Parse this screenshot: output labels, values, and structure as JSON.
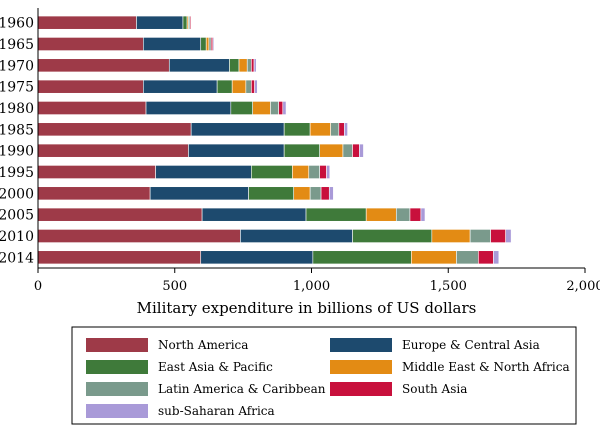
{
  "chart_data": {
    "type": "bar",
    "orientation": "horizontal",
    "stacked": true,
    "title": "",
    "xlabel": "Military expenditure in billions of US dollars",
    "ylabel": "",
    "xlim": [
      0,
      2000
    ],
    "xticks": [
      0,
      500,
      1000,
      1500,
      2000
    ],
    "xtick_labels": [
      "0",
      "500",
      "1,000",
      "1,500",
      "2,000"
    ],
    "grid": false,
    "legend_position": "bottom",
    "categories": [
      "1960",
      "1965",
      "1970",
      "1975",
      "1980",
      "1985",
      "1990",
      "1995",
      "2000",
      "2005",
      "2010",
      "2014"
    ],
    "series": [
      {
        "name": "North America",
        "color": "#9e3a48",
        "values": [
          360,
          385,
          480,
          385,
          395,
          560,
          550,
          430,
          410,
          600,
          740,
          595
        ]
      },
      {
        "name": "Europe & Central Asia",
        "color": "#1d4a6e",
        "values": [
          170,
          210,
          220,
          270,
          310,
          340,
          350,
          350,
          360,
          380,
          410,
          410
        ]
      },
      {
        "name": "East Asia & Pacific",
        "color": "#3f7a3a",
        "values": [
          15,
          20,
          35,
          55,
          80,
          95,
          130,
          150,
          165,
          220,
          290,
          360
        ]
      },
      {
        "name": "Middle East & North Africa",
        "color": "#e38b14",
        "values": [
          5,
          10,
          30,
          50,
          65,
          75,
          85,
          60,
          60,
          110,
          140,
          165
        ]
      },
      {
        "name": "Latin America & Caribbean",
        "color": "#7a9a8c",
        "values": [
          5,
          8,
          15,
          20,
          30,
          30,
          35,
          40,
          40,
          50,
          75,
          80
        ]
      },
      {
        "name": "South Asia",
        "color": "#c8103c",
        "values": [
          4,
          6,
          10,
          12,
          15,
          20,
          25,
          25,
          30,
          40,
          55,
          55
        ]
      },
      {
        "name": "sub-Saharan Africa",
        "color": "#a99ad8",
        "values": [
          2,
          4,
          8,
          10,
          12,
          12,
          15,
          12,
          15,
          15,
          20,
          20
        ]
      }
    ]
  }
}
